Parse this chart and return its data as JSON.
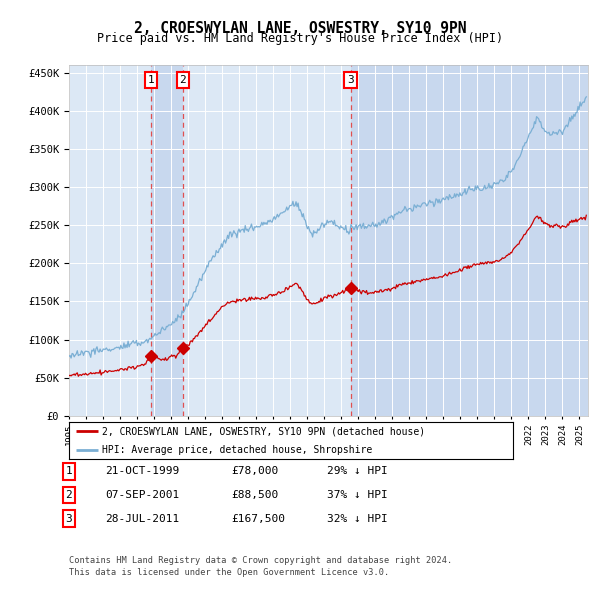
{
  "title": "2, CROESWYLAN LANE, OSWESTRY, SY10 9PN",
  "subtitle": "Price paid vs. HM Land Registry's House Price Index (HPI)",
  "legend_line1": "2, CROESWYLAN LANE, OSWESTRY, SY10 9PN (detached house)",
  "legend_line2": "HPI: Average price, detached house, Shropshire",
  "footer1": "Contains HM Land Registry data © Crown copyright and database right 2024.",
  "footer2": "This data is licensed under the Open Government Licence v3.0.",
  "hpi_color": "#7bafd4",
  "price_color": "#cc0000",
  "dashed_color": "#e05050",
  "bg_chart": "#dce8f5",
  "bg_highlight": "#c8d8ee",
  "purchases": [
    {
      "date_str": "21-OCT-1999",
      "date_x": 1999.8,
      "price": 78000,
      "label": "1"
    },
    {
      "date_str": "07-SEP-2001",
      "date_x": 2001.68,
      "price": 88500,
      "label": "2"
    },
    {
      "date_str": "28-JUL-2011",
      "date_x": 2011.55,
      "price": 167500,
      "label": "3"
    }
  ],
  "table_rows": [
    {
      "num": "1",
      "date": "21-OCT-1999",
      "price": "£78,000",
      "pct": "29% ↓ HPI"
    },
    {
      "num": "2",
      "date": "07-SEP-2001",
      "price": "£88,500",
      "pct": "37% ↓ HPI"
    },
    {
      "num": "3",
      "date": "28-JUL-2011",
      "price": "£167,500",
      "pct": "32% ↓ HPI"
    }
  ],
  "ylim": [
    0,
    460000
  ],
  "yticks": [
    0,
    50000,
    100000,
    150000,
    200000,
    250000,
    300000,
    350000,
    400000,
    450000
  ],
  "xlim_start": 1995.0,
  "xlim_end": 2025.5
}
